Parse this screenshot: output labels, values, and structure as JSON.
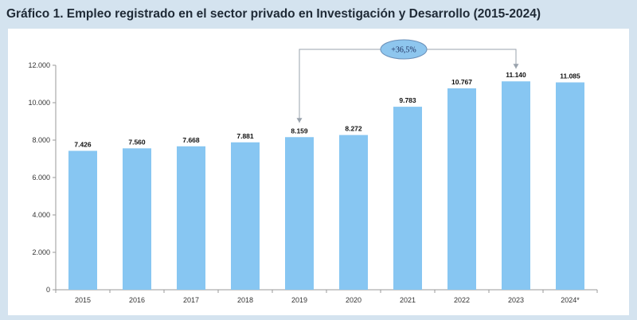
{
  "title": "Gráfico 1. Empleo registrado en el sector privado en Investigación y Desarrollo (2015-2024)",
  "chart_data": {
    "type": "bar",
    "title": "Gráfico 1. Empleo registrado en el sector privado en Investigación y Desarrollo (2015-2024)",
    "xlabel": "",
    "ylabel": "",
    "categories": [
      "2015",
      "2016",
      "2017",
      "2018",
      "2019",
      "2020",
      "2021",
      "2022",
      "2023",
      "2024"
    ],
    "category_labels": [
      "2015",
      "2016",
      "2017",
      "2018",
      "2019",
      "2020",
      "2021",
      "2022",
      "2023",
      "2024*"
    ],
    "values": [
      7426,
      7560,
      7668,
      7881,
      8159,
      8272,
      9783,
      10767,
      11140,
      11085
    ],
    "data_labels": [
      "7.426",
      "7.560",
      "7.668",
      "7.881",
      "8.159",
      "8.272",
      "9.783",
      "10.767",
      "11.140",
      "11.085"
    ],
    "ylim": [
      0,
      12000
    ],
    "yticks": [
      0,
      2000,
      4000,
      6000,
      8000,
      10000,
      12000
    ],
    "ytick_labels": [
      "0",
      "2.000",
      "4.000",
      "6.000",
      "8.000",
      "10.000",
      "12.000"
    ],
    "grid": false,
    "legend": "none",
    "bar_color": "#87c6f2",
    "annotation": {
      "text": "+36,5%",
      "from": "2019",
      "to": "2023",
      "bubble_color": "#8ec6ee",
      "arrow_color": "#9aa3ad"
    }
  }
}
